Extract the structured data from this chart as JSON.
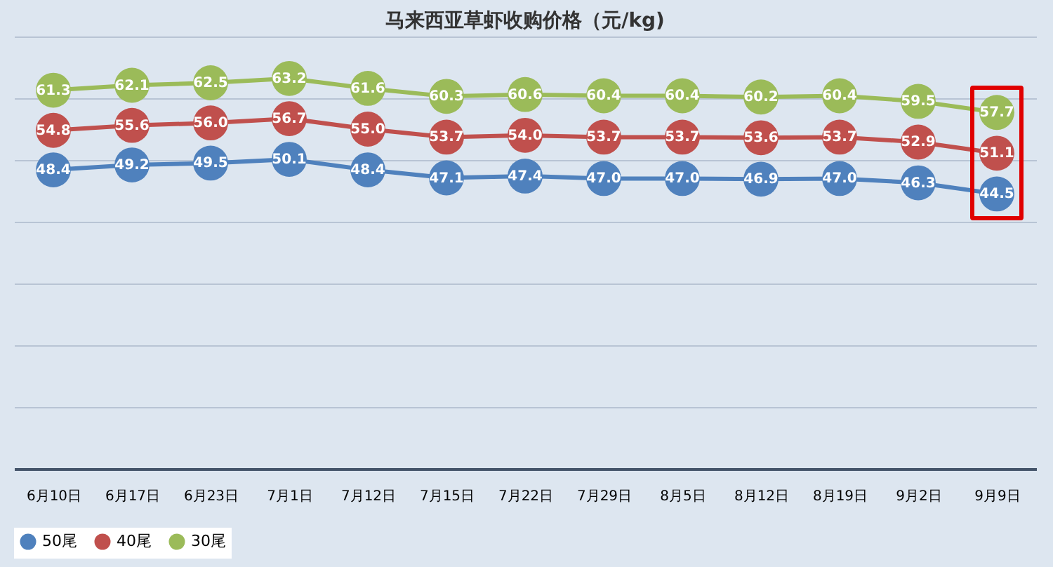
{
  "chart_data": {
    "type": "line",
    "title": "马来西亚草虾收购价格（元/kg)",
    "categories": [
      "6月10日",
      "6月17日",
      "6月23日",
      "7月1日",
      "7月12日",
      "7月15日",
      "7月22日",
      "7月29日",
      "8月5日",
      "8月12日",
      "8月19日",
      "9月2日",
      "9月9日"
    ],
    "series": [
      {
        "name": "50尾",
        "color": "#4f81bd",
        "values": [
          48.4,
          49.2,
          49.5,
          50.1,
          48.4,
          47.1,
          47.4,
          47.0,
          47.0,
          46.9,
          47.0,
          46.3,
          44.5
        ],
        "value_labels": [
          "48.4",
          "49.2",
          "49.5",
          "50.1",
          "48.4",
          "47.1",
          "47.4",
          "47.0",
          "47.0",
          "46.9",
          "47.0",
          "46.3",
          "44.5"
        ]
      },
      {
        "name": "40尾",
        "color": "#c0504d",
        "values": [
          54.8,
          55.6,
          56.0,
          56.7,
          55.0,
          53.7,
          54.0,
          53.7,
          53.7,
          53.6,
          53.7,
          52.9,
          51.1
        ],
        "value_labels": [
          "54.8",
          "55.6",
          "56.0",
          "56.7",
          "55.0",
          "53.7",
          "54.0",
          "53.7",
          "53.7",
          "53.6",
          "53.7",
          "52.9",
          "51.1"
        ]
      },
      {
        "name": "30尾",
        "color": "#9bbb59",
        "values": [
          61.3,
          62.1,
          62.5,
          63.2,
          61.6,
          60.3,
          60.6,
          60.4,
          60.4,
          60.2,
          60.4,
          59.5,
          57.7
        ],
        "value_labels": [
          "61.3",
          "62.1",
          "62.5",
          "63.2",
          "61.6",
          "60.3",
          "60.6",
          "60.4",
          "60.4",
          "60.2",
          "60.4",
          "59.5",
          "57.7"
        ]
      }
    ],
    "ylim": [
      0,
      70
    ],
    "yticks": [
      {
        "value": 0,
        "label": null
      },
      {
        "value": 10,
        "label": null
      },
      {
        "value": 20,
        "label": null
      },
      {
        "value": 30,
        "label": null
      },
      {
        "value": 40,
        "label": null
      },
      {
        "value": 50,
        "label": null
      },
      {
        "value": 60,
        "label": null
      },
      {
        "value": 70,
        "label": null
      }
    ],
    "marker": "circle",
    "line_style": "solid",
    "grid": "y",
    "legend": "bottom",
    "tick_labels": "x"
  }
}
